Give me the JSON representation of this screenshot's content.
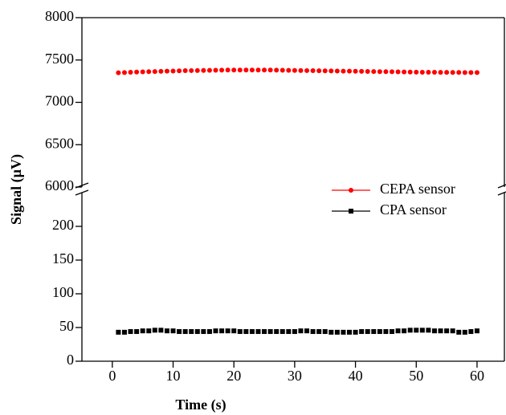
{
  "chart_data": {
    "type": "scatter",
    "x_label": "Time (s)",
    "y_label": "Signal (µV)",
    "xlim": [
      -5,
      64.5
    ],
    "xticks": [
      0,
      10,
      20,
      30,
      40,
      50,
      60
    ],
    "y_segments": [
      {
        "ylim": [
          0,
          250
        ],
        "yticks": [
          0,
          50,
          100,
          150,
          200
        ]
      },
      {
        "ylim": [
          6000,
          8000
        ],
        "yticks": [
          6000,
          6500,
          7000,
          7500,
          8000
        ]
      }
    ],
    "legend": "right",
    "x": [
      1,
      2,
      3,
      4,
      5,
      6,
      7,
      8,
      9,
      10,
      11,
      12,
      13,
      14,
      15,
      16,
      17,
      18,
      19,
      20,
      21,
      22,
      23,
      24,
      25,
      26,
      27,
      28,
      29,
      30,
      31,
      32,
      33,
      34,
      35,
      36,
      37,
      38,
      39,
      40,
      41,
      42,
      43,
      44,
      45,
      46,
      47,
      48,
      49,
      50,
      51,
      52,
      53,
      54,
      55,
      56,
      57,
      58,
      59,
      60
    ],
    "series": [
      {
        "name": "CEPA sensor",
        "color": "#ff0000",
        "marker": "circle",
        "segment": 1,
        "values": [
          7350,
          7352,
          7355,
          7358,
          7360,
          7362,
          7364,
          7366,
          7368,
          7370,
          7372,
          7374,
          7375,
          7376,
          7377,
          7378,
          7379,
          7380,
          7381,
          7382,
          7382,
          7382,
          7382,
          7382,
          7381,
          7381,
          7380,
          7379,
          7378,
          7377,
          7376,
          7375,
          7374,
          7373,
          7372,
          7371,
          7370,
          7369,
          7368,
          7367,
          7366,
          7365,
          7364,
          7363,
          7362,
          7361,
          7360,
          7359,
          7358,
          7357,
          7356,
          7355,
          7355,
          7354,
          7354,
          7353,
          7353,
          7352,
          7352,
          7352
        ]
      },
      {
        "name": "CPA sensor",
        "color": "#000000",
        "marker": "square",
        "segment": 0,
        "values": [
          43,
          43,
          44,
          44,
          45,
          45,
          46,
          46,
          45,
          45,
          44,
          44,
          44,
          44,
          44,
          44,
          45,
          45,
          45,
          45,
          44,
          44,
          44,
          44,
          44,
          44,
          44,
          44,
          44,
          44,
          45,
          45,
          44,
          44,
          44,
          43,
          43,
          43,
          43,
          43,
          44,
          44,
          44,
          44,
          44,
          44,
          45,
          45,
          46,
          46,
          46,
          46,
          45,
          45,
          45,
          45,
          43,
          43,
          44,
          45
        ]
      }
    ]
  }
}
